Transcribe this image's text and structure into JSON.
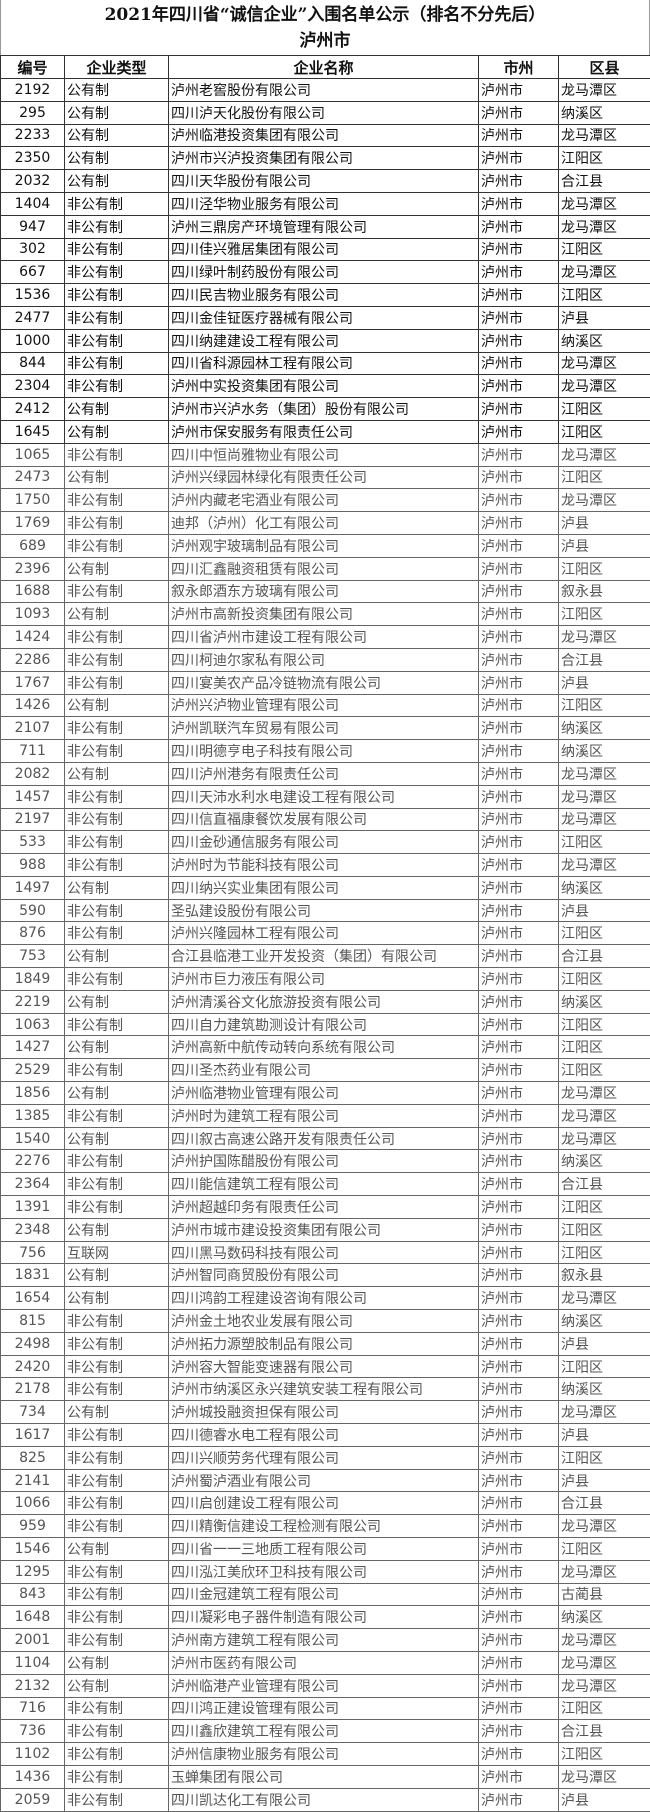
{
  "title": {
    "line1": "2021年四川省“诚信企业”入围名单公示（排名不分先后）",
    "line2": "泸州市"
  },
  "headers": [
    "编号",
    "企业类型",
    "企业名称",
    "市州",
    "区县"
  ],
  "rows": [
    [
      "2192",
      "公有制",
      "泸州老窖股份有限公司",
      "泸州市",
      "龙马潭区"
    ],
    [
      "295",
      "公有制",
      "四川泸天化股份有限公司",
      "泸州市",
      "纳溪区"
    ],
    [
      "2233",
      "公有制",
      "泸州临港投资集团有限公司",
      "泸州市",
      "龙马潭区"
    ],
    [
      "2350",
      "公有制",
      "泸州市兴泸投资集团有限公司",
      "泸州市",
      "江阳区"
    ],
    [
      "2032",
      "公有制",
      "四川天华股份有限公司",
      "泸州市",
      "合江县"
    ],
    [
      "1404",
      "非公有制",
      "四川泾华物业服务有限公司",
      "泸州市",
      "龙马潭区"
    ],
    [
      "947",
      "非公有制",
      "泸州三鼎房产环境管理有限公司",
      "泸州市",
      "龙马潭区"
    ],
    [
      "302",
      "非公有制",
      "四川佳兴雅居集团有限公司",
      "泸州市",
      "江阳区"
    ],
    [
      "667",
      "非公有制",
      "四川绿叶制药股份有限公司",
      "泸州市",
      "龙马潭区"
    ],
    [
      "1536",
      "非公有制",
      "四川民吉物业服务有限公司",
      "泸州市",
      "江阳区"
    ],
    [
      "2477",
      "非公有制",
      "四川金佳钲医疗器械有限公司",
      "泸州市",
      "泸县"
    ],
    [
      "1000",
      "非公有制",
      "四川纳建建设工程有限公司",
      "泸州市",
      "纳溪区"
    ],
    [
      "844",
      "非公有制",
      "四川省科源园林工程有限公司",
      "泸州市",
      "龙马潭区"
    ],
    [
      "2304",
      "非公有制",
      "泸州中实投资集团有限公司",
      "泸州市",
      "龙马潭区"
    ],
    [
      "2412",
      "公有制",
      "泸州市兴泸水务（集团）股份有限公司",
      "泸州市",
      "江阳区"
    ],
    [
      "1645",
      "公有制",
      "泸州市保安服务有限责任公司",
      "泸州市",
      "江阳区"
    ],
    [
      "1065",
      "非公有制",
      "四川中恒尚雅物业有限公司",
      "泸州市",
      "龙马潭区"
    ],
    [
      "2473",
      "公有制",
      "泸州兴绿园林绿化有限责任公司",
      "泸州市",
      "江阳区"
    ],
    [
      "1750",
      "非公有制",
      "泸州内藏老宅酒业有限公司",
      "泸州市",
      "龙马潭区"
    ],
    [
      "1769",
      "非公有制",
      "迪邦（泸州）化工有限公司",
      "泸州市",
      "泸县"
    ],
    [
      "689",
      "非公有制",
      "泸州观宇玻璃制品有限公司",
      "泸州市",
      "泸县"
    ],
    [
      "2396",
      "公有制",
      "四川汇鑫融资租赁有限公司",
      "泸州市",
      "江阳区"
    ],
    [
      "1688",
      "非公有制",
      "叙永郎酒东方玻璃有限公司",
      "泸州市",
      "叙永县"
    ],
    [
      "1093",
      "公有制",
      "泸州市高新投资集团有限公司",
      "泸州市",
      "江阳区"
    ],
    [
      "1424",
      "非公有制",
      "四川省泸州市建设工程有限公司",
      "泸州市",
      "龙马潭区"
    ],
    [
      "2286",
      "非公有制",
      "四川柯迪尔家私有限公司",
      "泸州市",
      "合江县"
    ],
    [
      "1767",
      "非公有制",
      "四川宴美农产品冷链物流有限公司",
      "泸州市",
      "泸县"
    ],
    [
      "1426",
      "公有制",
      "泸州兴泸物业管理有限公司",
      "泸州市",
      "江阳区"
    ],
    [
      "2107",
      "非公有制",
      "泸州凯联汽车贸易有限公司",
      "泸州市",
      "纳溪区"
    ],
    [
      "711",
      "非公有制",
      "四川明德亨电子科技有限公司",
      "泸州市",
      "纳溪区"
    ],
    [
      "2082",
      "公有制",
      "四川泸州港务有限责任公司",
      "泸州市",
      "龙马潭区"
    ],
    [
      "1457",
      "非公有制",
      "四川天沛水利水电建设工程有限公司",
      "泸州市",
      "龙马潭区"
    ],
    [
      "2197",
      "非公有制",
      "四川信直福康餐饮发展有限公司",
      "泸州市",
      "龙马潭区"
    ],
    [
      "533",
      "非公有制",
      "四川金砂通信服务有限公司",
      "泸州市",
      "江阳区"
    ],
    [
      "988",
      "非公有制",
      "泸州时为节能科技有限公司",
      "泸州市",
      "龙马潭区"
    ],
    [
      "1497",
      "公有制",
      "四川纳兴实业集团有限公司",
      "泸州市",
      "纳溪区"
    ],
    [
      "590",
      "非公有制",
      "圣弘建设股份有限公司",
      "泸州市",
      "泸县"
    ],
    [
      "876",
      "非公有制",
      "泸州兴隆园林工程有限公司",
      "泸州市",
      "江阳区"
    ],
    [
      "753",
      "公有制",
      "合江县临港工业开发投资（集团）有限公司",
      "泸州市",
      "合江县"
    ],
    [
      "1849",
      "非公有制",
      "泸州市巨力液压有限公司",
      "泸州市",
      "江阳区"
    ],
    [
      "2219",
      "公有制",
      "泸州清溪谷文化旅游投资有限公司",
      "泸州市",
      "纳溪区"
    ],
    [
      "1063",
      "非公有制",
      "四川自力建筑勘测设计有限公司",
      "泸州市",
      "江阳区"
    ],
    [
      "1427",
      "公有制",
      "泸州高新中航传动转向系统有限公司",
      "泸州市",
      "江阳区"
    ],
    [
      "2529",
      "非公有制",
      "四川圣杰药业有限公司",
      "泸州市",
      "江阳区"
    ],
    [
      "1856",
      "公有制",
      "泸州临港物业管理有限公司",
      "泸州市",
      "龙马潭区"
    ],
    [
      "1385",
      "非公有制",
      "泸州时为建筑工程有限公司",
      "泸州市",
      "龙马潭区"
    ],
    [
      "1540",
      "公有制",
      "四川叙古高速公路开发有限责任公司",
      "泸州市",
      "龙马潭区"
    ],
    [
      "2276",
      "非公有制",
      "泸州护国陈醋股份有限公司",
      "泸州市",
      "纳溪区"
    ],
    [
      "2364",
      "非公有制",
      "四川能信建筑工程有限公司",
      "泸州市",
      "合江县"
    ],
    [
      "1391",
      "非公有制",
      "泸州超越印务有限责任公司",
      "泸州市",
      "江阳区"
    ],
    [
      "2348",
      "公有制",
      "泸州市城市建设投资集团有限公司",
      "泸州市",
      "江阳区"
    ],
    [
      "756",
      "互联网",
      "四川黑马数码科技有限公司",
      "泸州市",
      "江阳区"
    ],
    [
      "1831",
      "公有制",
      "泸州智同商贸股份有限公司",
      "泸州市",
      "叙永县"
    ],
    [
      "1654",
      "公有制",
      "四川鸿韵工程建设咨询有限公司",
      "泸州市",
      "龙马潭区"
    ],
    [
      "815",
      "非公有制",
      "泸州金土地农业发展有限公司",
      "泸州市",
      "纳溪区"
    ],
    [
      "2498",
      "非公有制",
      "泸州拓力源塑胶制品有限公司",
      "泸州市",
      "泸县"
    ],
    [
      "2420",
      "非公有制",
      "泸州容大智能变速器有限公司",
      "泸州市",
      "江阳区"
    ],
    [
      "2178",
      "非公有制",
      "泸州市纳溪区永兴建筑安装工程有限公司",
      "泸州市",
      "纳溪区"
    ],
    [
      "734",
      "公有制",
      "泸州城投融资担保有限公司",
      "泸州市",
      "龙马潭区"
    ],
    [
      "1617",
      "非公有制",
      "四川德睿水电工程有限公司",
      "泸州市",
      "泸县"
    ],
    [
      "825",
      "非公有制",
      "四川兴顺劳务代理有限公司",
      "泸州市",
      "江阳区"
    ],
    [
      "2141",
      "非公有制",
      "泸州蜀泸酒业有限公司",
      "泸州市",
      "泸县"
    ],
    [
      "1066",
      "非公有制",
      "四川启创建设工程有限公司",
      "泸州市",
      "合江县"
    ],
    [
      "959",
      "非公有制",
      "四川精衡信建设工程检测有限公司",
      "泸州市",
      "龙马潭区"
    ],
    [
      "1546",
      "公有制",
      "四川省一一三地质工程有限公司",
      "泸州市",
      "江阳区"
    ],
    [
      "1295",
      "非公有制",
      "四川泓江美欣环卫科技有限公司",
      "泸州市",
      "龙马潭区"
    ],
    [
      "843",
      "非公有制",
      "四川金冠建筑工程有限公司",
      "泸州市",
      "古蔺县"
    ],
    [
      "1648",
      "非公有制",
      "四川凝彩电子器件制造有限公司",
      "泸州市",
      "纳溪区"
    ],
    [
      "2001",
      "非公有制",
      "泸州南方建筑工程有限公司",
      "泸州市",
      "龙马潭区"
    ],
    [
      "1104",
      "公有制",
      "泸州市医药有限公司",
      "泸州市",
      "龙马潭区"
    ],
    [
      "2132",
      "公有制",
      "泸州临港产业管理有限公司",
      "泸州市",
      "龙马潭区"
    ],
    [
      "716",
      "非公有制",
      "四川鸿正建设管理有限公司",
      "泸州市",
      "江阳区"
    ],
    [
      "736",
      "非公有制",
      "四川鑫欣建筑工程有限公司",
      "泸州市",
      "合江县"
    ],
    [
      "1102",
      "非公有制",
      "泸州信康物业服务有限公司",
      "泸州市",
      "江阳区"
    ],
    [
      "1436",
      "非公有制",
      "玉蝉集团有限公司",
      "泸州市",
      "龙马潭区"
    ],
    [
      "2059",
      "非公有制",
      "四川凯达化工有限公司",
      "泸州市",
      "泸县"
    ]
  ]
}
